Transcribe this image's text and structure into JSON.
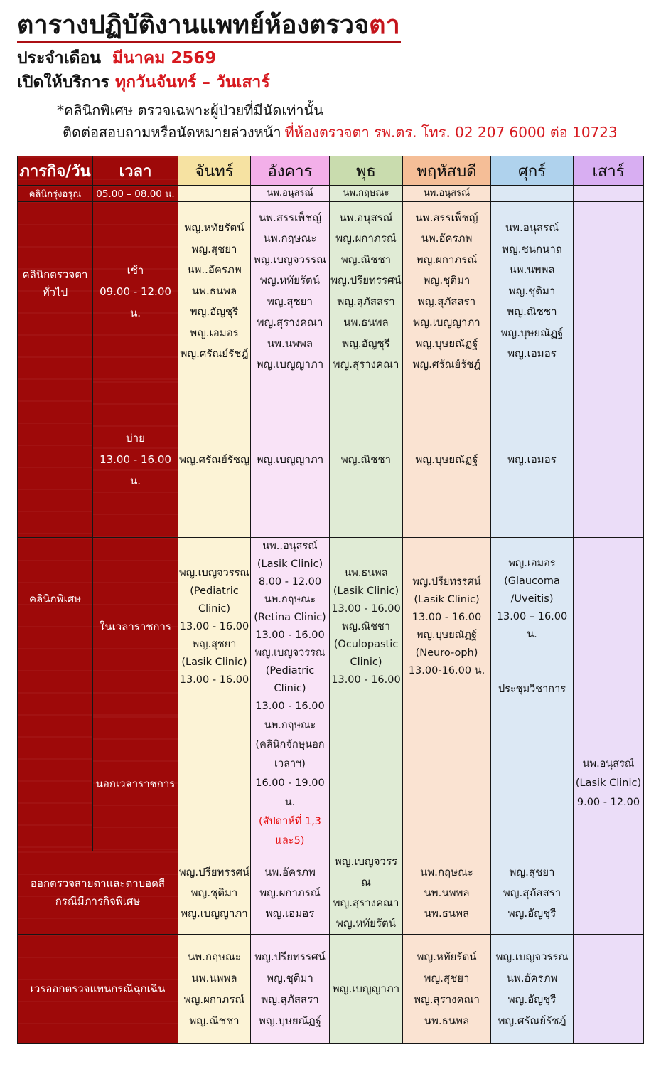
{
  "header": {
    "title_black": "ตารางปฏิบัติงานแพทย์ห้องตรวจ",
    "title_red": "ตา",
    "month_label": "ประจำเดือน",
    "month_value": "มีนาคม 2569",
    "service_label": "เปิดให้บริการ",
    "service_value": "ทุกวันจันทร์ – วันเสาร์",
    "note_special": "*คลินิกพิเศษ ตรวจเฉพาะผู้ป่วยที่มีนัดเท่านั้น",
    "note_contact_black": "ติดต่อสอบถามหรือนัดหมายล่วงหน้า",
    "note_contact_red": "ที่ห้องตรวจตา รพ.ตร. โทร. 02 207 6000 ต่อ 10723"
  },
  "colors": {
    "dark_red": "#9E0909",
    "accent_red": "#D6191F",
    "mon_header": "#F6E2A2",
    "mon_body": "#FCF3D6",
    "tue_header": "#F3AFE9",
    "tue_body": "#F9E3F7",
    "wed_header": "#C9DCAE",
    "wed_body": "#E0EBD5",
    "thu_header": "#F5BE97",
    "thu_body": "#FAE3D2",
    "fri_header": "#AFD2ED",
    "fri_body": "#DCE8F4",
    "sat_header": "#D8AEF2",
    "sat_body": "#EBDDF8"
  },
  "table": {
    "headers": [
      "ภารกิจ/วัน",
      "เวลา",
      "จันทร์",
      "อังคาร",
      "พุธ",
      "พฤหัสบดี",
      "ศุกร์",
      "เสาร์"
    ],
    "rows": [
      {
        "activity": "คลินิกรุ่งอรุณ",
        "time": "05.00 – 08.00 น.",
        "days": [
          [],
          [
            "นพ.อนุสรณ์"
          ],
          [
            "นพ.กฤษณะ"
          ],
          [
            "นพ.อนุสรณ์"
          ],
          [],
          []
        ]
      },
      {
        "activity_lines": [
          "คลินิกตรวจตา",
          "ทั่วไป"
        ],
        "time_lines": [
          "เช้า",
          "09.00 - 12.00 น."
        ],
        "days": [
          [
            "พญ.หทัยรัตน์",
            "พญ.สุชยา",
            "นพ..อัครภพ",
            "นพ.ธนพล",
            "พญ.อัญชุรี",
            "พญ.เอมอร",
            "พญ.ศรัณย์รัชฎ์"
          ],
          [
            "นพ.สรรเพ็ชญ์",
            "นพ.กฤษณะ",
            "พญ.เบญจวรรณ",
            "พญ.หทัยรัตน์",
            "พญ.สุชยา",
            "พญ.สุรางคณา",
            "นพ.นพพล",
            "พญ.เบญญาภา"
          ],
          [
            "นพ.อนุสรณ์",
            "พญ.ผกาภรณ์",
            "พญ.ณิชชา",
            "พญ.ปรียทรรศน์",
            "พญ.สุภัสสรา",
            "นพ.ธนพล",
            "พญ.อัญชุรี",
            "พญ.สุรางคณา"
          ],
          [
            "นพ.สรรเพ็ชญ์",
            "นพ.อัครภพ",
            "พญ.ผกาภรณ์",
            "พญ.ชุติมา",
            "พญ.สุภัสสรา",
            "พญ.เบญญาภา",
            "พญ.บุษยณัฏฐ์",
            "พญ.ศรัณย์รัชฎ์"
          ],
          [
            "นพ.อนุสรณ์",
            "พญ.ชนกนาถ",
            "นพ.นพพล",
            "พญ.ชุติมา",
            "พญ.ณิชชา",
            "พญ.บุษยณัฏฐ์",
            "พญ.เอมอร"
          ],
          []
        ]
      },
      {
        "time_lines": [
          "บ่าย",
          "13.00 - 16.00 น."
        ],
        "days": [
          [
            "พญ.ศรัณย์รัชญ"
          ],
          [
            "พญ.เบญญาภา"
          ],
          [
            "พญ.ณิชชา"
          ],
          [
            "พญ.บุษยณัฏฐ์"
          ],
          [
            "พญ.เอมอร"
          ],
          []
        ]
      },
      {
        "activity": "คลินิกพิเศษ",
        "time": "ในเวลาราชการ",
        "days": [
          [
            "พญ.เบญจวรรณ",
            "(Pediatric",
            "Clinic)",
            "13.00 - 16.00",
            "พญ.สุชยา",
            "(Lasik Clinic)",
            "13.00 - 16.00"
          ],
          [
            "นพ..อนุสรณ์",
            "(Lasik Clinic)",
            "8.00 - 12.00",
            "นพ.กฤษณะ",
            "(Retina Clinic)",
            "13.00 - 16.00",
            "พญ.เบญจวรรณ",
            "(Pediatric Clinic)",
            "13.00 - 16.00"
          ],
          [
            "นพ.ธนพล",
            "(Lasik Clinic)",
            "13.00 - 16.00",
            "พญ.ณิชชา",
            "(Oculopastic",
            "Clinic)",
            "13.00 - 16.00"
          ],
          [
            "พญ.ปรียทรรศน์",
            "(Lasik Clinic)",
            "13.00 - 16.00",
            "พญ.บุษยณัฏฐ์",
            "(Neuro-oph)",
            "13.00-16.00 น."
          ],
          [
            "พญ.เอมอร",
            {
              "text": "(Glaucoma /Uveitis)",
              "cls": "small"
            },
            {
              "text": "13.00 – 16.00 น.",
              "cls": "small"
            },
            {
              "text": "ประชุมวิชาการ",
              "cls": "mt"
            }
          ],
          []
        ]
      },
      {
        "time": "นอกเวลาราชการ",
        "days": [
          [],
          [
            "นพ.กฤษณะ",
            {
              "text": "(คลินิกจักษุนอกเวลาฯ)",
              "cls": "small"
            },
            "16.00 - 19.00 น.",
            {
              "text": "(สัปดาห์ที่ 1,3 และ5)",
              "cls": "red-note"
            }
          ],
          [],
          [],
          [],
          [
            "นพ.อนุสรณ์",
            "(Lasik Clinic)",
            "9.00 - 12.00"
          ]
        ]
      },
      {
        "activity_lines": [
          "ออกตรวจสายตาและตาบอดสี",
          "กรณีมีภารกิจพิเศษ"
        ],
        "days": [
          [
            "พญ.ปรียทรรศน์",
            "พญ.ชุติมา",
            "พญ.เบญญาภา"
          ],
          [
            "นพ.อัครภพ",
            "พญ.ผกาภรณ์",
            "พญ.เอมอร"
          ],
          [
            "พญ.เบญจวรรณ",
            "พญ.สุรางคณา",
            "พญ.หทัยรัตน์"
          ],
          [
            "นพ.กฤษณะ",
            "นพ.นพพล",
            "นพ.ธนพล"
          ],
          [
            "พญ.สุชยา",
            "พญ.สุภัสสรา",
            "พญ.อัญชุรี"
          ],
          []
        ]
      },
      {
        "activity": "เวรออกตรวจแทนกรณีฉุกเฉิน",
        "days": [
          [
            "นพ.กฤษณะ",
            "นพ.นพพล",
            "พญ.ผกาภรณ์",
            "พญ.ณิชชา"
          ],
          [
            "พญ.ปรียทรรศน์",
            "พญ.ชุติมา",
            "พญ.สุภัสสรา",
            "พญ.บุษยณัฏฐ์"
          ],
          [
            "พญ.เบญญาภา"
          ],
          [
            "พญ.หทัยรัตน์",
            "พญ.สุชยา",
            "พญ.สุรางคณา",
            "นพ.ธนพล"
          ],
          [
            "พญ.เบญจวรรณ",
            "นพ.อัครภพ",
            "พญ.อัญชุรี",
            "พญ.ศรัณย์รัชฎ์"
          ],
          []
        ]
      }
    ]
  }
}
